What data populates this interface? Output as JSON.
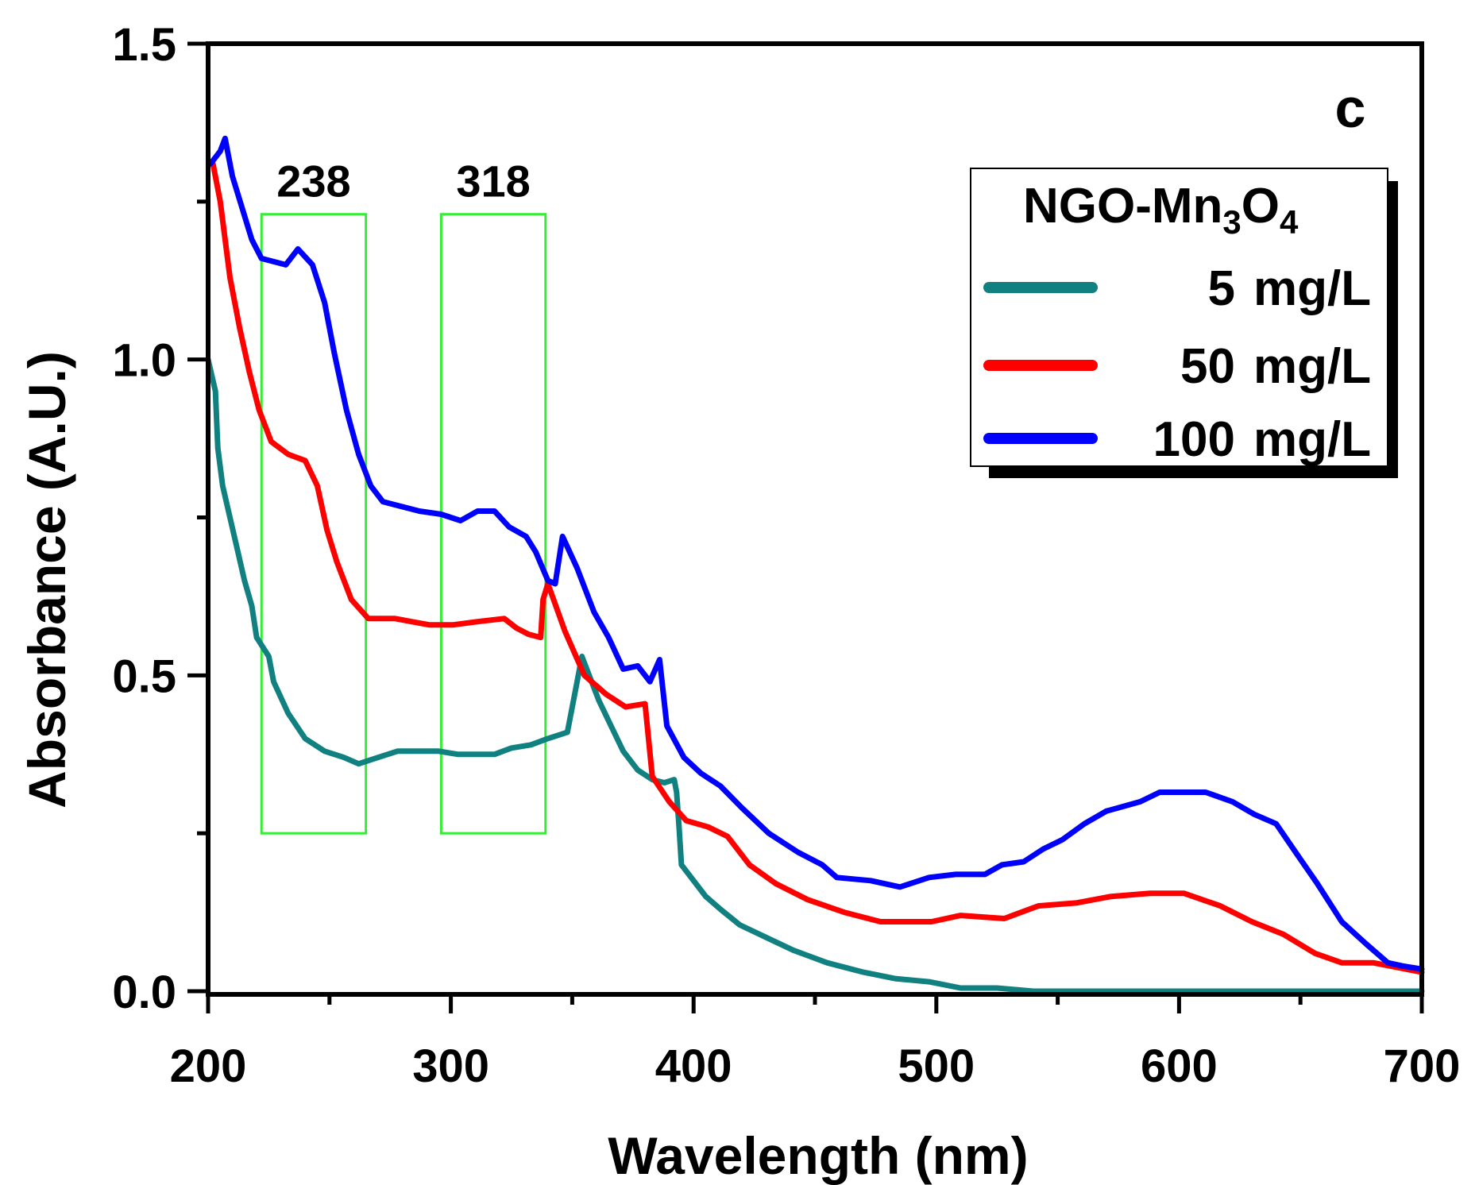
{
  "chart_data": {
    "type": "line",
    "panel_label": "c",
    "xlabel": "Wavelength (nm)",
    "ylabel": "Absorbance (A.U.)",
    "xlim": [
      200,
      700
    ],
    "ylim": [
      -0.03,
      1.5
    ],
    "xticks": [
      "200",
      "300",
      "400",
      "500",
      "600",
      "700"
    ],
    "yticks": [
      "0.0",
      "0.5",
      "1.0",
      "1.5"
    ],
    "legend": {
      "title_main": "NGO-Mn",
      "title_sub1": "3",
      "title_mid": "O",
      "title_sub2": "4",
      "placement": "top-right"
    },
    "annotations": [
      {
        "label": "238",
        "x0": 222,
        "x1": 265,
        "y0": 0.25,
        "y1": 1.23,
        "color": "#33ee33"
      },
      {
        "label": "318",
        "x0": 296,
        "x1": 339,
        "y0": 0.25,
        "y1": 1.23,
        "color": "#33ee33"
      }
    ],
    "series": [
      {
        "name": "5 mg/L",
        "amount": "5",
        "unit": "mg/L",
        "color": "#118080",
        "points": [
          [
            200,
            1.0
          ],
          [
            203,
            0.95
          ],
          [
            204,
            0.86
          ],
          [
            206,
            0.8
          ],
          [
            209,
            0.75
          ],
          [
            212,
            0.7
          ],
          [
            215,
            0.65
          ],
          [
            218,
            0.61
          ],
          [
            220,
            0.56
          ],
          [
            225,
            0.53
          ],
          [
            227,
            0.49
          ],
          [
            233,
            0.44
          ],
          [
            240,
            0.4
          ],
          [
            248,
            0.38
          ],
          [
            256,
            0.37
          ],
          [
            262,
            0.36
          ],
          [
            270,
            0.37
          ],
          [
            278,
            0.38
          ],
          [
            287,
            0.38
          ],
          [
            295,
            0.38
          ],
          [
            303,
            0.375
          ],
          [
            312,
            0.375
          ],
          [
            318,
            0.375
          ],
          [
            325,
            0.385
          ],
          [
            333,
            0.39
          ],
          [
            340,
            0.4
          ],
          [
            348,
            0.41
          ],
          [
            351,
            0.47
          ],
          [
            354,
            0.53
          ],
          [
            356,
            0.51
          ],
          [
            361,
            0.46
          ],
          [
            366,
            0.42
          ],
          [
            371,
            0.38
          ],
          [
            377,
            0.35
          ],
          [
            383,
            0.335
          ],
          [
            388,
            0.33
          ],
          [
            392,
            0.335
          ],
          [
            393,
            0.315
          ],
          [
            394,
            0.26
          ],
          [
            395,
            0.2
          ],
          [
            399,
            0.18
          ],
          [
            405,
            0.15
          ],
          [
            411,
            0.13
          ],
          [
            419,
            0.105
          ],
          [
            430,
            0.085
          ],
          [
            441,
            0.065
          ],
          [
            455,
            0.045
          ],
          [
            470,
            0.03
          ],
          [
            483,
            0.02
          ],
          [
            497,
            0.015
          ],
          [
            510,
            0.005
          ],
          [
            525,
            0.005
          ],
          [
            540,
            0.0
          ],
          [
            600,
            0.0
          ],
          [
            700,
            0.0
          ]
        ]
      },
      {
        "name": "50 mg/L",
        "amount": "50",
        "unit": "mg/L",
        "color": "#ff0000",
        "points": [
          [
            202,
            1.31
          ],
          [
            205,
            1.25
          ],
          [
            209,
            1.13
          ],
          [
            213,
            1.05
          ],
          [
            217,
            0.98
          ],
          [
            221,
            0.92
          ],
          [
            226,
            0.87
          ],
          [
            233,
            0.85
          ],
          [
            240,
            0.84
          ],
          [
            245,
            0.8
          ],
          [
            249,
            0.73
          ],
          [
            253,
            0.68
          ],
          [
            259,
            0.62
          ],
          [
            266,
            0.59
          ],
          [
            277,
            0.59
          ],
          [
            291,
            0.58
          ],
          [
            301,
            0.58
          ],
          [
            311,
            0.585
          ],
          [
            322,
            0.59
          ],
          [
            327,
            0.575
          ],
          [
            332,
            0.565
          ],
          [
            337,
            0.56
          ],
          [
            338,
            0.62
          ],
          [
            340,
            0.645
          ],
          [
            347,
            0.57
          ],
          [
            355,
            0.5
          ],
          [
            364,
            0.47
          ],
          [
            372,
            0.45
          ],
          [
            380,
            0.455
          ],
          [
            383,
            0.34
          ],
          [
            390,
            0.3
          ],
          [
            397,
            0.27
          ],
          [
            406,
            0.26
          ],
          [
            414,
            0.245
          ],
          [
            423,
            0.2
          ],
          [
            434,
            0.17
          ],
          [
            447,
            0.145
          ],
          [
            462,
            0.125
          ],
          [
            477,
            0.11
          ],
          [
            498,
            0.11
          ],
          [
            510,
            0.12
          ],
          [
            528,
            0.115
          ],
          [
            542,
            0.135
          ],
          [
            558,
            0.14
          ],
          [
            572,
            0.15
          ],
          [
            588,
            0.155
          ],
          [
            602,
            0.155
          ],
          [
            617,
            0.135
          ],
          [
            630,
            0.11
          ],
          [
            643,
            0.09
          ],
          [
            656,
            0.06
          ],
          [
            667,
            0.045
          ],
          [
            680,
            0.045
          ],
          [
            700,
            0.03
          ]
        ]
      },
      {
        "name": "100 mg/L",
        "amount": "100",
        "unit": "mg/L",
        "color": "#0000ff",
        "points": [
          [
            201,
            1.31
          ],
          [
            205,
            1.33
          ],
          [
            207,
            1.35
          ],
          [
            210,
            1.29
          ],
          [
            214,
            1.24
          ],
          [
            218,
            1.19
          ],
          [
            222,
            1.16
          ],
          [
            227,
            1.155
          ],
          [
            232,
            1.15
          ],
          [
            237,
            1.175
          ],
          [
            243,
            1.15
          ],
          [
            248,
            1.09
          ],
          [
            252,
            1.01
          ],
          [
            257,
            0.92
          ],
          [
            262,
            0.85
          ],
          [
            267,
            0.8
          ],
          [
            272,
            0.775
          ],
          [
            277,
            0.77
          ],
          [
            287,
            0.76
          ],
          [
            296,
            0.755
          ],
          [
            304,
            0.745
          ],
          [
            311,
            0.76
          ],
          [
            318,
            0.76
          ],
          [
            324,
            0.735
          ],
          [
            331,
            0.72
          ],
          [
            335,
            0.695
          ],
          [
            340,
            0.65
          ],
          [
            343,
            0.645
          ],
          [
            346,
            0.72
          ],
          [
            352,
            0.67
          ],
          [
            359,
            0.6
          ],
          [
            365,
            0.56
          ],
          [
            371,
            0.51
          ],
          [
            377,
            0.515
          ],
          [
            382,
            0.49
          ],
          [
            386,
            0.525
          ],
          [
            389,
            0.42
          ],
          [
            396,
            0.37
          ],
          [
            403,
            0.345
          ],
          [
            411,
            0.325
          ],
          [
            420,
            0.29
          ],
          [
            431,
            0.25
          ],
          [
            443,
            0.22
          ],
          [
            453,
            0.2
          ],
          [
            459,
            0.18
          ],
          [
            473,
            0.175
          ],
          [
            485,
            0.165
          ],
          [
            497,
            0.18
          ],
          [
            508,
            0.185
          ],
          [
            520,
            0.185
          ],
          [
            527,
            0.2
          ],
          [
            536,
            0.205
          ],
          [
            544,
            0.225
          ],
          [
            552,
            0.24
          ],
          [
            561,
            0.265
          ],
          [
            570,
            0.285
          ],
          [
            584,
            0.3
          ],
          [
            592,
            0.315
          ],
          [
            600,
            0.315
          ],
          [
            611,
            0.315
          ],
          [
            622,
            0.3
          ],
          [
            631,
            0.28
          ],
          [
            640,
            0.265
          ],
          [
            648,
            0.22
          ],
          [
            657,
            0.17
          ],
          [
            667,
            0.11
          ],
          [
            677,
            0.075
          ],
          [
            686,
            0.045
          ],
          [
            692,
            0.04
          ],
          [
            700,
            0.035
          ]
        ]
      }
    ]
  }
}
